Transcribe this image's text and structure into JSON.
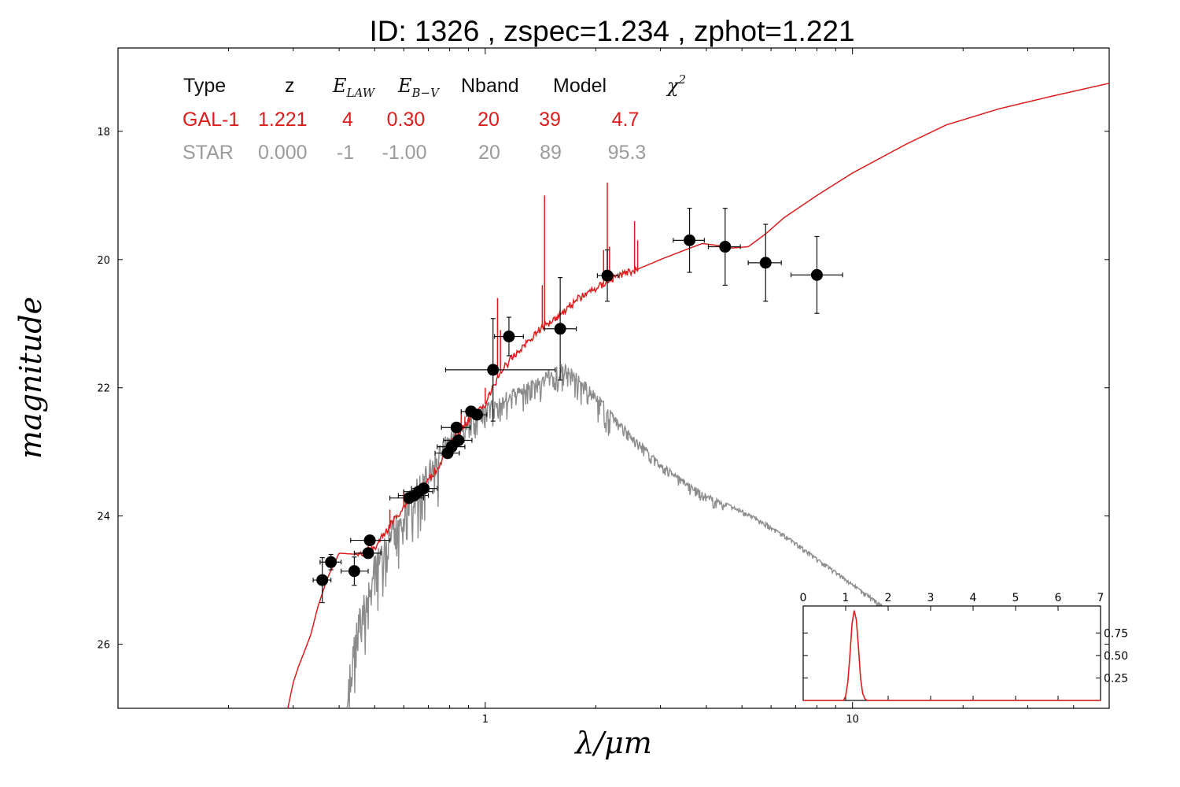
{
  "title": "ID:  1326  , zspec=1.234 , zphot=1.221",
  "colors": {
    "galaxy": "#dd1c1c",
    "star": "#8c8c8c",
    "points": "#000000"
  },
  "summary_table": {
    "headers": {
      "type": "Type",
      "z": "z",
      "e_law": "E",
      "e_law_sub": "LAW",
      "e_bv": "E",
      "e_bv_sub": "B−V",
      "nband": "Nband",
      "model": "Model",
      "chi2": "χ",
      "chi2_sup": "2"
    },
    "rows": [
      {
        "type": "GAL-1",
        "z": "1.221",
        "e_law": "4",
        "e_bv": "0.30",
        "nband": "20",
        "model": "39",
        "chi2": "4.7",
        "color": "#dd1c1c"
      },
      {
        "type": "STAR",
        "z": "0.000",
        "e_law": "-1",
        "e_bv": "-1.00",
        "nband": "20",
        "model": "89",
        "chi2": "95.3",
        "color": "#9b9b9b"
      }
    ]
  },
  "chart_data": [
    {
      "type": "scatter",
      "xlabel": "λ/μm",
      "ylabel": "magnitude",
      "xscale": "log",
      "xlim": [
        0.1,
        50
      ],
      "ylim": [
        27.0,
        16.7
      ],
      "y_inverted": true,
      "x_ticks": [
        {
          "value": 1,
          "label": "1"
        },
        {
          "value": 10,
          "label": "10"
        }
      ],
      "y_ticks": [
        18,
        20,
        22,
        24,
        26
      ],
      "points": [
        {
          "x": 0.36,
          "y": 25.0,
          "xerr": [
            0.34,
            0.38
          ],
          "yerr": 0.35
        },
        {
          "x": 0.38,
          "y": 24.72,
          "xerr": [
            0.355,
            0.405
          ],
          "yerr": 0.12
        },
        {
          "x": 0.44,
          "y": 24.86,
          "xerr": [
            0.405,
            0.48
          ],
          "yerr": 0.22
        },
        {
          "x": 0.48,
          "y": 24.58,
          "xerr": [
            0.44,
            0.52
          ],
          "yerr": 0.08
        },
        {
          "x": 0.485,
          "y": 24.38,
          "xerr": [
            0.43,
            0.55
          ],
          "yerr": 0.06
        },
        {
          "x": 0.62,
          "y": 23.72,
          "xerr": [
            0.55,
            0.68
          ],
          "yerr": 0.08
        },
        {
          "x": 0.64,
          "y": 23.68,
          "xerr": [
            0.58,
            0.7
          ],
          "yerr": 0.07
        },
        {
          "x": 0.66,
          "y": 23.62,
          "xerr": [
            0.6,
            0.72
          ],
          "yerr": 0.07
        },
        {
          "x": 0.68,
          "y": 23.57,
          "xerr": [
            0.63,
            0.74
          ],
          "yerr": 0.07
        },
        {
          "x": 0.79,
          "y": 23.02,
          "xerr": [
            0.73,
            0.85
          ],
          "yerr": 0.06
        },
        {
          "x": 0.81,
          "y": 22.92,
          "xerr": [
            0.74,
            0.88
          ],
          "yerr": 0.06
        },
        {
          "x": 0.835,
          "y": 22.62,
          "xerr": [
            0.76,
            0.91
          ],
          "yerr": 0.06
        },
        {
          "x": 0.845,
          "y": 22.82,
          "xerr": [
            0.77,
            0.92
          ],
          "yerr": 0.06
        },
        {
          "x": 0.915,
          "y": 22.37,
          "xerr": [
            0.86,
            0.97
          ],
          "yerr": 0.06
        },
        {
          "x": 0.95,
          "y": 22.42,
          "xerr": [
            0.89,
            1.01
          ],
          "yerr": 0.06
        },
        {
          "x": 1.05,
          "y": 21.72,
          "xerr": [
            0.78,
            1.55
          ],
          "yerr": 0.8
        },
        {
          "x": 1.16,
          "y": 21.2,
          "xerr": [
            1.06,
            1.27
          ],
          "yerr": 0.3
        },
        {
          "x": 1.6,
          "y": 21.08,
          "xerr": [
            1.45,
            1.77
          ],
          "yerr": 0.8
        },
        {
          "x": 2.15,
          "y": 20.25,
          "xerr": [
            2.02,
            2.3
          ],
          "yerr": 0.4
        },
        {
          "x": 3.6,
          "y": 19.7,
          "xerr": [
            3.25,
            3.95
          ],
          "yerr": 0.5
        },
        {
          "x": 4.5,
          "y": 19.8,
          "xerr": [
            4.05,
            4.95
          ],
          "yerr": 0.6
        },
        {
          "x": 5.8,
          "y": 20.05,
          "xerr": [
            5.2,
            6.4
          ],
          "yerr": 0.6
        },
        {
          "x": 8.0,
          "y": 20.24,
          "xerr": [
            6.8,
            9.4
          ],
          "yerr": 0.6
        }
      ],
      "galaxy_model": {
        "continuum": [
          [
            0.29,
            27.0
          ],
          [
            0.3,
            26.6
          ],
          [
            0.31,
            26.35
          ],
          [
            0.32,
            26.15
          ],
          [
            0.335,
            25.85
          ],
          [
            0.35,
            25.42
          ],
          [
            0.37,
            25.0
          ],
          [
            0.38,
            24.85
          ],
          [
            0.4,
            24.58
          ],
          [
            0.45,
            24.6
          ],
          [
            0.5,
            24.5
          ],
          [
            0.55,
            24.15
          ],
          [
            0.6,
            23.85
          ],
          [
            0.65,
            23.65
          ],
          [
            0.7,
            23.45
          ],
          [
            0.75,
            23.2
          ],
          [
            0.8,
            22.9
          ],
          [
            0.85,
            22.7
          ],
          [
            0.9,
            22.5
          ],
          [
            0.95,
            22.4
          ],
          [
            1.0,
            22.25
          ],
          [
            1.05,
            22.0
          ],
          [
            1.1,
            21.75
          ],
          [
            1.2,
            21.5
          ],
          [
            1.4,
            21.1
          ],
          [
            1.6,
            20.85
          ],
          [
            1.8,
            20.6
          ],
          [
            2.0,
            20.45
          ],
          [
            2.3,
            20.25
          ],
          [
            2.6,
            20.15
          ],
          [
            3.0,
            20.0
          ],
          [
            3.5,
            19.85
          ],
          [
            3.9,
            19.75
          ],
          [
            4.3,
            19.78
          ],
          [
            4.7,
            19.82
          ],
          [
            5.2,
            19.8
          ],
          [
            5.8,
            19.6
          ],
          [
            6.5,
            19.35
          ],
          [
            8.0,
            19.0
          ],
          [
            10.0,
            18.65
          ],
          [
            14.0,
            18.2
          ],
          [
            18.0,
            17.9
          ],
          [
            25.0,
            17.65
          ],
          [
            35.0,
            17.45
          ],
          [
            50.0,
            17.25
          ]
        ],
        "emission_lines": [
          [
            0.55,
            23.9
          ],
          [
            0.6,
            23.6
          ],
          [
            0.86,
            22.35
          ],
          [
            0.88,
            22.45
          ],
          [
            1.0,
            22.0
          ],
          [
            1.08,
            20.6
          ],
          [
            1.1,
            21.1
          ],
          [
            1.43,
            20.4
          ],
          [
            1.45,
            19.0
          ],
          [
            2.1,
            19.85
          ],
          [
            2.15,
            18.8
          ],
          [
            2.18,
            19.8
          ],
          [
            2.55,
            19.4
          ],
          [
            2.6,
            19.7
          ]
        ]
      },
      "star_model": {
        "envelope": [
          [
            0.42,
            27.0
          ],
          [
            0.43,
            26.0
          ],
          [
            0.45,
            25.5
          ],
          [
            0.5,
            24.6
          ],
          [
            0.55,
            24.1
          ],
          [
            0.6,
            23.7
          ],
          [
            0.65,
            23.4
          ],
          [
            0.7,
            23.1
          ],
          [
            0.75,
            22.85
          ],
          [
            0.8,
            22.7
          ],
          [
            0.9,
            22.45
          ],
          [
            1.0,
            22.25
          ],
          [
            1.1,
            22.1
          ],
          [
            1.2,
            22.0
          ],
          [
            1.35,
            21.85
          ],
          [
            1.5,
            21.7
          ],
          [
            1.65,
            21.6
          ],
          [
            1.8,
            21.8
          ],
          [
            2.0,
            22.05
          ],
          [
            2.3,
            22.5
          ],
          [
            2.6,
            22.8
          ],
          [
            3.0,
            23.15
          ],
          [
            3.5,
            23.45
          ],
          [
            4.0,
            23.65
          ],
          [
            5.0,
            23.9
          ],
          [
            6.0,
            24.15
          ],
          [
            7.0,
            24.4
          ],
          [
            8.0,
            24.65
          ],
          [
            9.0,
            24.85
          ],
          [
            10.0,
            25.05
          ],
          [
            11.5,
            25.3
          ],
          [
            13.0,
            25.55
          ]
        ]
      }
    },
    {
      "type": "line",
      "title": "",
      "xlim": [
        0,
        7
      ],
      "ylim": [
        0,
        1.05
      ],
      "x_ticks": [
        0,
        1,
        2,
        3,
        4,
        5,
        6,
        7
      ],
      "y_ticks": [
        0.25,
        0.5,
        0.75
      ],
      "series": [
        {
          "x": [
            0,
            0.95,
            1.0,
            1.05,
            1.1,
            1.15,
            1.2,
            1.25,
            1.3,
            1.35,
            1.4,
            1.45,
            1.5,
            7.0
          ],
          "values": [
            0.0,
            0.0,
            0.05,
            0.2,
            0.5,
            0.85,
            1.0,
            0.9,
            0.6,
            0.25,
            0.08,
            0.02,
            0.0,
            0.0
          ]
        }
      ]
    }
  ]
}
